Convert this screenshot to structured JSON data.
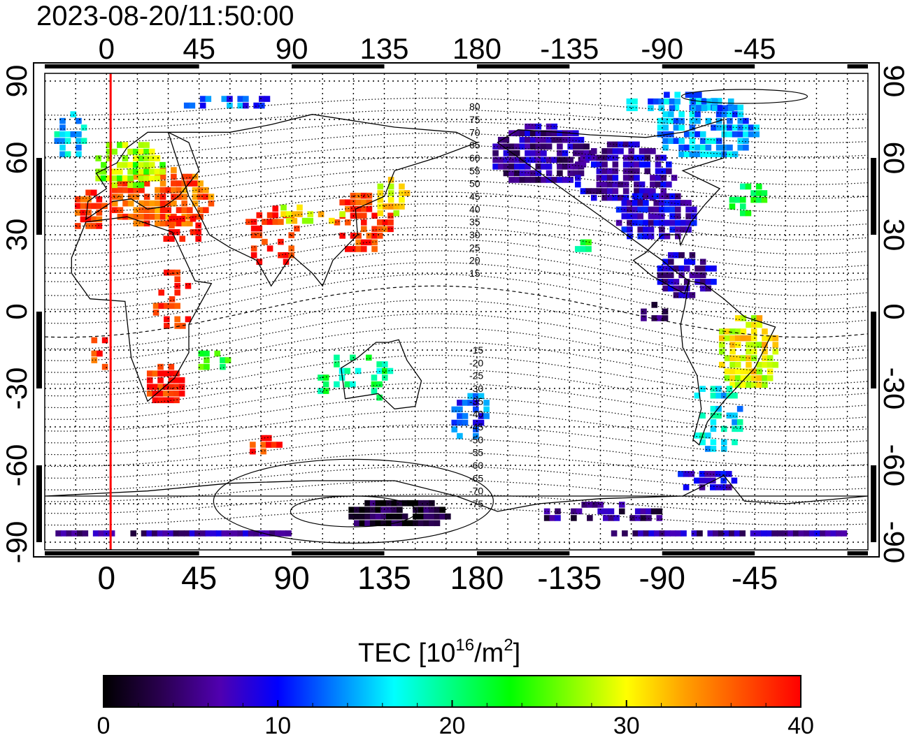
{
  "timestamp": "2023-08-20/11:50:00",
  "map": {
    "x_range": [
      -30,
      370
    ],
    "y_range": [
      -93,
      93
    ],
    "top_ticks": [
      "0",
      "45",
      "90",
      "135",
      "180",
      "-135",
      "-90",
      "-45"
    ],
    "bottom_ticks": [
      "0",
      "45",
      "90",
      "135",
      "180",
      "-135",
      "-90",
      "-45"
    ],
    "left_ticks": [
      "90",
      "60",
      "30",
      "0",
      "-30",
      "-60",
      "-90"
    ],
    "right_ticks": [
      "90",
      "60",
      "30",
      "0",
      "-30",
      "-60",
      "-90"
    ],
    "red_meridian_lon": 2,
    "contour_labels_north": [
      "80",
      "75",
      "70",
      "65",
      "60",
      "55",
      "50",
      "45",
      "40",
      "35",
      "30",
      "25",
      "20",
      "15"
    ],
    "contour_labels_south": [
      "-15",
      "-20",
      "-25",
      "-30",
      "-35",
      "-40",
      "-45",
      "-50",
      "-55",
      "-60",
      "-65",
      "-70",
      "-75"
    ],
    "grid": "dotted"
  },
  "colorbar": {
    "title_main": "TEC  [10",
    "title_exp1": "16",
    "title_mid": "/m",
    "title_exp2": "2",
    "title_end": "]",
    "range": [
      0,
      40
    ],
    "ticks": [
      "0",
      "10",
      "20",
      "30",
      "40"
    ],
    "colors": [
      "#000000",
      "#2a0050",
      "#5000b0",
      "#0000ff",
      "#0080ff",
      "#00ffff",
      "#00ff80",
      "#00ff00",
      "#80ff00",
      "#ffff00",
      "#ffa000",
      "#ff5000",
      "#ff0000"
    ]
  }
}
